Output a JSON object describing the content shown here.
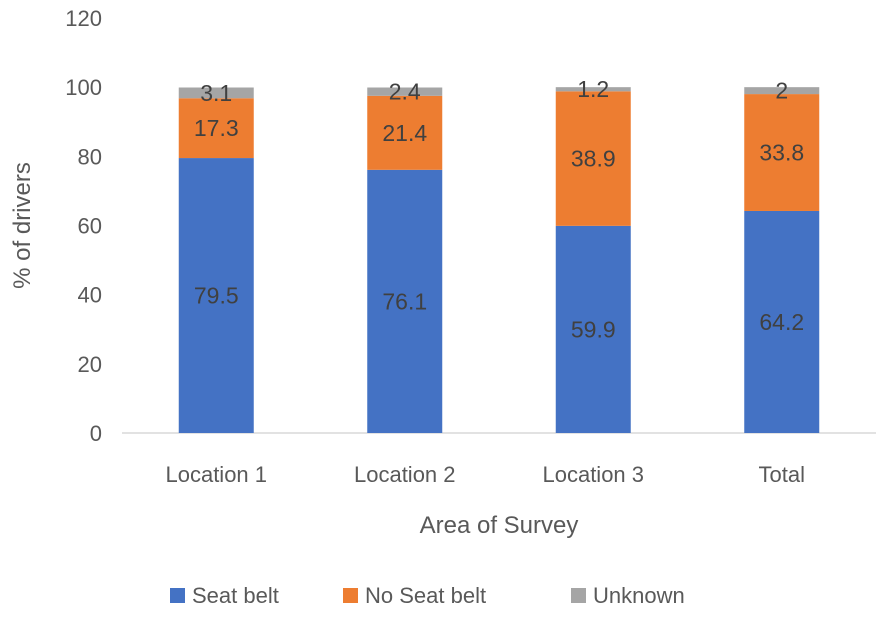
{
  "chart_data": {
    "type": "bar",
    "stacked": true,
    "categories": [
      "Location 1",
      "Location 2",
      "Location 3",
      "Total"
    ],
    "series": [
      {
        "name": "Seat belt",
        "color": "#4472C4",
        "values": [
          79.5,
          76.1,
          59.9,
          64.2
        ]
      },
      {
        "name": "No Seat belt",
        "color": "#ED7D31",
        "values": [
          17.3,
          21.4,
          38.9,
          33.8
        ]
      },
      {
        "name": "Unknown",
        "color": "#A5A5A5",
        "values": [
          3.1,
          2.4,
          1.2,
          2
        ]
      }
    ],
    "title": "",
    "xlabel": "Area of Survey",
    "ylabel": "% of drivers",
    "ylim": [
      0,
      120
    ],
    "yticks": [
      0,
      20,
      40,
      60,
      80,
      100,
      120
    ],
    "grid": false,
    "legend_position": "bottom"
  }
}
